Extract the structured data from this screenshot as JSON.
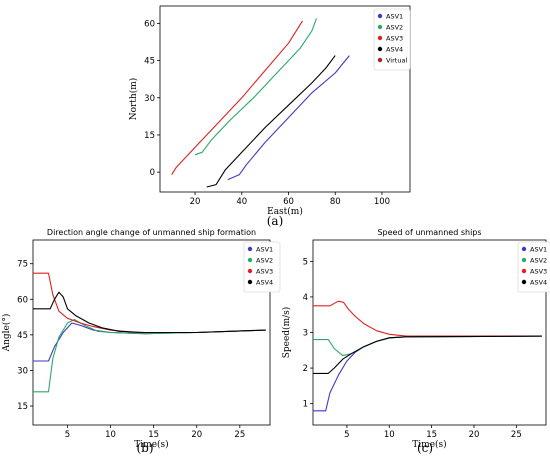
{
  "chart_data": [
    {
      "id": "a",
      "type": "line",
      "caption": "(a)",
      "title": "",
      "xlabel": "East(m)",
      "ylabel": "North(m)",
      "xlim": [
        5,
        112
      ],
      "ylim": [
        -8,
        67
      ],
      "xticks": [
        20,
        40,
        60,
        80,
        100
      ],
      "yticks": [
        0,
        15,
        30,
        45,
        60
      ],
      "legend_position": "top-right",
      "series": [
        {
          "name": "ASV1",
          "color": "#3a3ac8",
          "points": [
            [
              34,
              -3
            ],
            [
              39,
              -1
            ],
            [
              42,
              3
            ],
            [
              50,
              12
            ],
            [
              60,
              22
            ],
            [
              70,
              32
            ],
            [
              80,
              40
            ],
            [
              86,
              47
            ]
          ]
        },
        {
          "name": "ASV2",
          "color": "#2ca86a",
          "points": [
            [
              20,
              7
            ],
            [
              23,
              8
            ],
            [
              27,
              13
            ],
            [
              35,
              21
            ],
            [
              45,
              30
            ],
            [
              55,
              40
            ],
            [
              65,
              50
            ],
            [
              70,
              57
            ],
            [
              72,
              62
            ]
          ]
        },
        {
          "name": "ASV3",
          "color": "#e02020",
          "points": [
            [
              10,
              -1
            ],
            [
              12,
              2
            ],
            [
              20,
              10
            ],
            [
              30,
              20
            ],
            [
              40,
              30
            ],
            [
              50,
              41
            ],
            [
              60,
              52
            ],
            [
              66,
              61
            ]
          ]
        },
        {
          "name": "ASV4",
          "color": "#000000",
          "points": [
            [
              25,
              -6
            ],
            [
              29,
              -5
            ],
            [
              33,
              1
            ],
            [
              40,
              8
            ],
            [
              50,
              18
            ],
            [
              60,
              27
            ],
            [
              70,
              36
            ],
            [
              76,
              42
            ],
            [
              80,
              47
            ]
          ]
        },
        {
          "name": "Virtual",
          "color": "#b02020",
          "points": []
        }
      ]
    },
    {
      "id": "b",
      "type": "line",
      "caption": "(b)",
      "title": "Direction angle change of unmanned ship formation",
      "xlabel": "Time(s)",
      "ylabel": "Angle(°)",
      "xlim": [
        1,
        28.5
      ],
      "ylim": [
        7,
        85
      ],
      "xticks": [
        5,
        10,
        15,
        20,
        25
      ],
      "yticks": [
        15,
        30,
        45,
        60,
        75
      ],
      "legend_position": "top-right",
      "series": [
        {
          "name": "ASV1",
          "color": "#3a3ac8",
          "points": [
            [
              1,
              34
            ],
            [
              2.8,
              34
            ],
            [
              3.5,
              40
            ],
            [
              4.5,
              46
            ],
            [
              5.5,
              50
            ],
            [
              6.5,
              49
            ],
            [
              8,
              47
            ],
            [
              10,
              46
            ],
            [
              14,
              45.5
            ],
            [
              20,
              46
            ],
            [
              28,
              47
            ]
          ]
        },
        {
          "name": "ASV2",
          "color": "#2ca86a",
          "points": [
            [
              1,
              21
            ],
            [
              2.8,
              21
            ],
            [
              3.3,
              35
            ],
            [
              4,
              44
            ],
            [
              5,
              50
            ],
            [
              5.8,
              51.5
            ],
            [
              7,
              49
            ],
            [
              8.5,
              46.5
            ],
            [
              10,
              46
            ],
            [
              14,
              45.5
            ],
            [
              20,
              46
            ],
            [
              28,
              47
            ]
          ]
        },
        {
          "name": "ASV3",
          "color": "#e02020",
          "points": [
            [
              1,
              71
            ],
            [
              2.8,
              71
            ],
            [
              3.3,
              62
            ],
            [
              4,
              55
            ],
            [
              5,
              52
            ],
            [
              6.5,
              50
            ],
            [
              8,
              48.5
            ],
            [
              10,
              47
            ],
            [
              13,
              46
            ],
            [
              20,
              46
            ],
            [
              28,
              47
            ]
          ]
        },
        {
          "name": "ASV4",
          "color": "#000000",
          "points": [
            [
              1,
              56
            ],
            [
              3,
              56
            ],
            [
              3.5,
              60
            ],
            [
              4,
              63
            ],
            [
              4.5,
              61
            ],
            [
              5,
              56
            ],
            [
              6,
              53
            ],
            [
              7.5,
              50
            ],
            [
              9,
              48
            ],
            [
              11,
              46.5
            ],
            [
              14,
              46
            ],
            [
              20,
              46
            ],
            [
              28,
              47
            ]
          ]
        }
      ]
    },
    {
      "id": "c",
      "type": "line",
      "caption": "(c)",
      "title": "Speed of unmanned ships",
      "xlabel": "Time(s)",
      "ylabel": "Speed(m/s)",
      "xlim": [
        1,
        28.5
      ],
      "ylim": [
        0.4,
        5.6
      ],
      "xticks": [
        5,
        10,
        15,
        20,
        25
      ],
      "yticks": [
        1,
        2,
        3,
        4,
        5
      ],
      "legend_position": "top-right",
      "series": [
        {
          "name": "ASV1",
          "color": "#3a3ac8",
          "points": [
            [
              1,
              0.8
            ],
            [
              2.5,
              0.8
            ],
            [
              3,
              1.3
            ],
            [
              4,
              1.8
            ],
            [
              5,
              2.2
            ],
            [
              6,
              2.45
            ],
            [
              7,
              2.6
            ],
            [
              8.5,
              2.75
            ],
            [
              10,
              2.85
            ],
            [
              12,
              2.88
            ],
            [
              28,
              2.9
            ]
          ]
        },
        {
          "name": "ASV2",
          "color": "#2ca86a",
          "points": [
            [
              1,
              2.8
            ],
            [
              2.8,
              2.8
            ],
            [
              3.5,
              2.55
            ],
            [
              4.5,
              2.35
            ],
            [
              5.5,
              2.4
            ],
            [
              7,
              2.6
            ],
            [
              8.5,
              2.75
            ],
            [
              10,
              2.85
            ],
            [
              12,
              2.88
            ],
            [
              28,
              2.9
            ]
          ]
        },
        {
          "name": "ASV3",
          "color": "#e02020",
          "points": [
            [
              1,
              3.75
            ],
            [
              3,
              3.75
            ],
            [
              4,
              3.88
            ],
            [
              4.6,
              3.85
            ],
            [
              5.2,
              3.65
            ],
            [
              6,
              3.45
            ],
            [
              7,
              3.25
            ],
            [
              8.5,
              3.05
            ],
            [
              10,
              2.95
            ],
            [
              12,
              2.9
            ],
            [
              28,
              2.9
            ]
          ]
        },
        {
          "name": "ASV4",
          "color": "#000000",
          "points": [
            [
              1,
              1.85
            ],
            [
              2.8,
              1.85
            ],
            [
              3.5,
              2.0
            ],
            [
              4.5,
              2.25
            ],
            [
              5.5,
              2.4
            ],
            [
              7,
              2.6
            ],
            [
              8.5,
              2.75
            ],
            [
              10,
              2.85
            ],
            [
              12,
              2.88
            ],
            [
              28,
              2.9
            ]
          ]
        }
      ]
    }
  ]
}
